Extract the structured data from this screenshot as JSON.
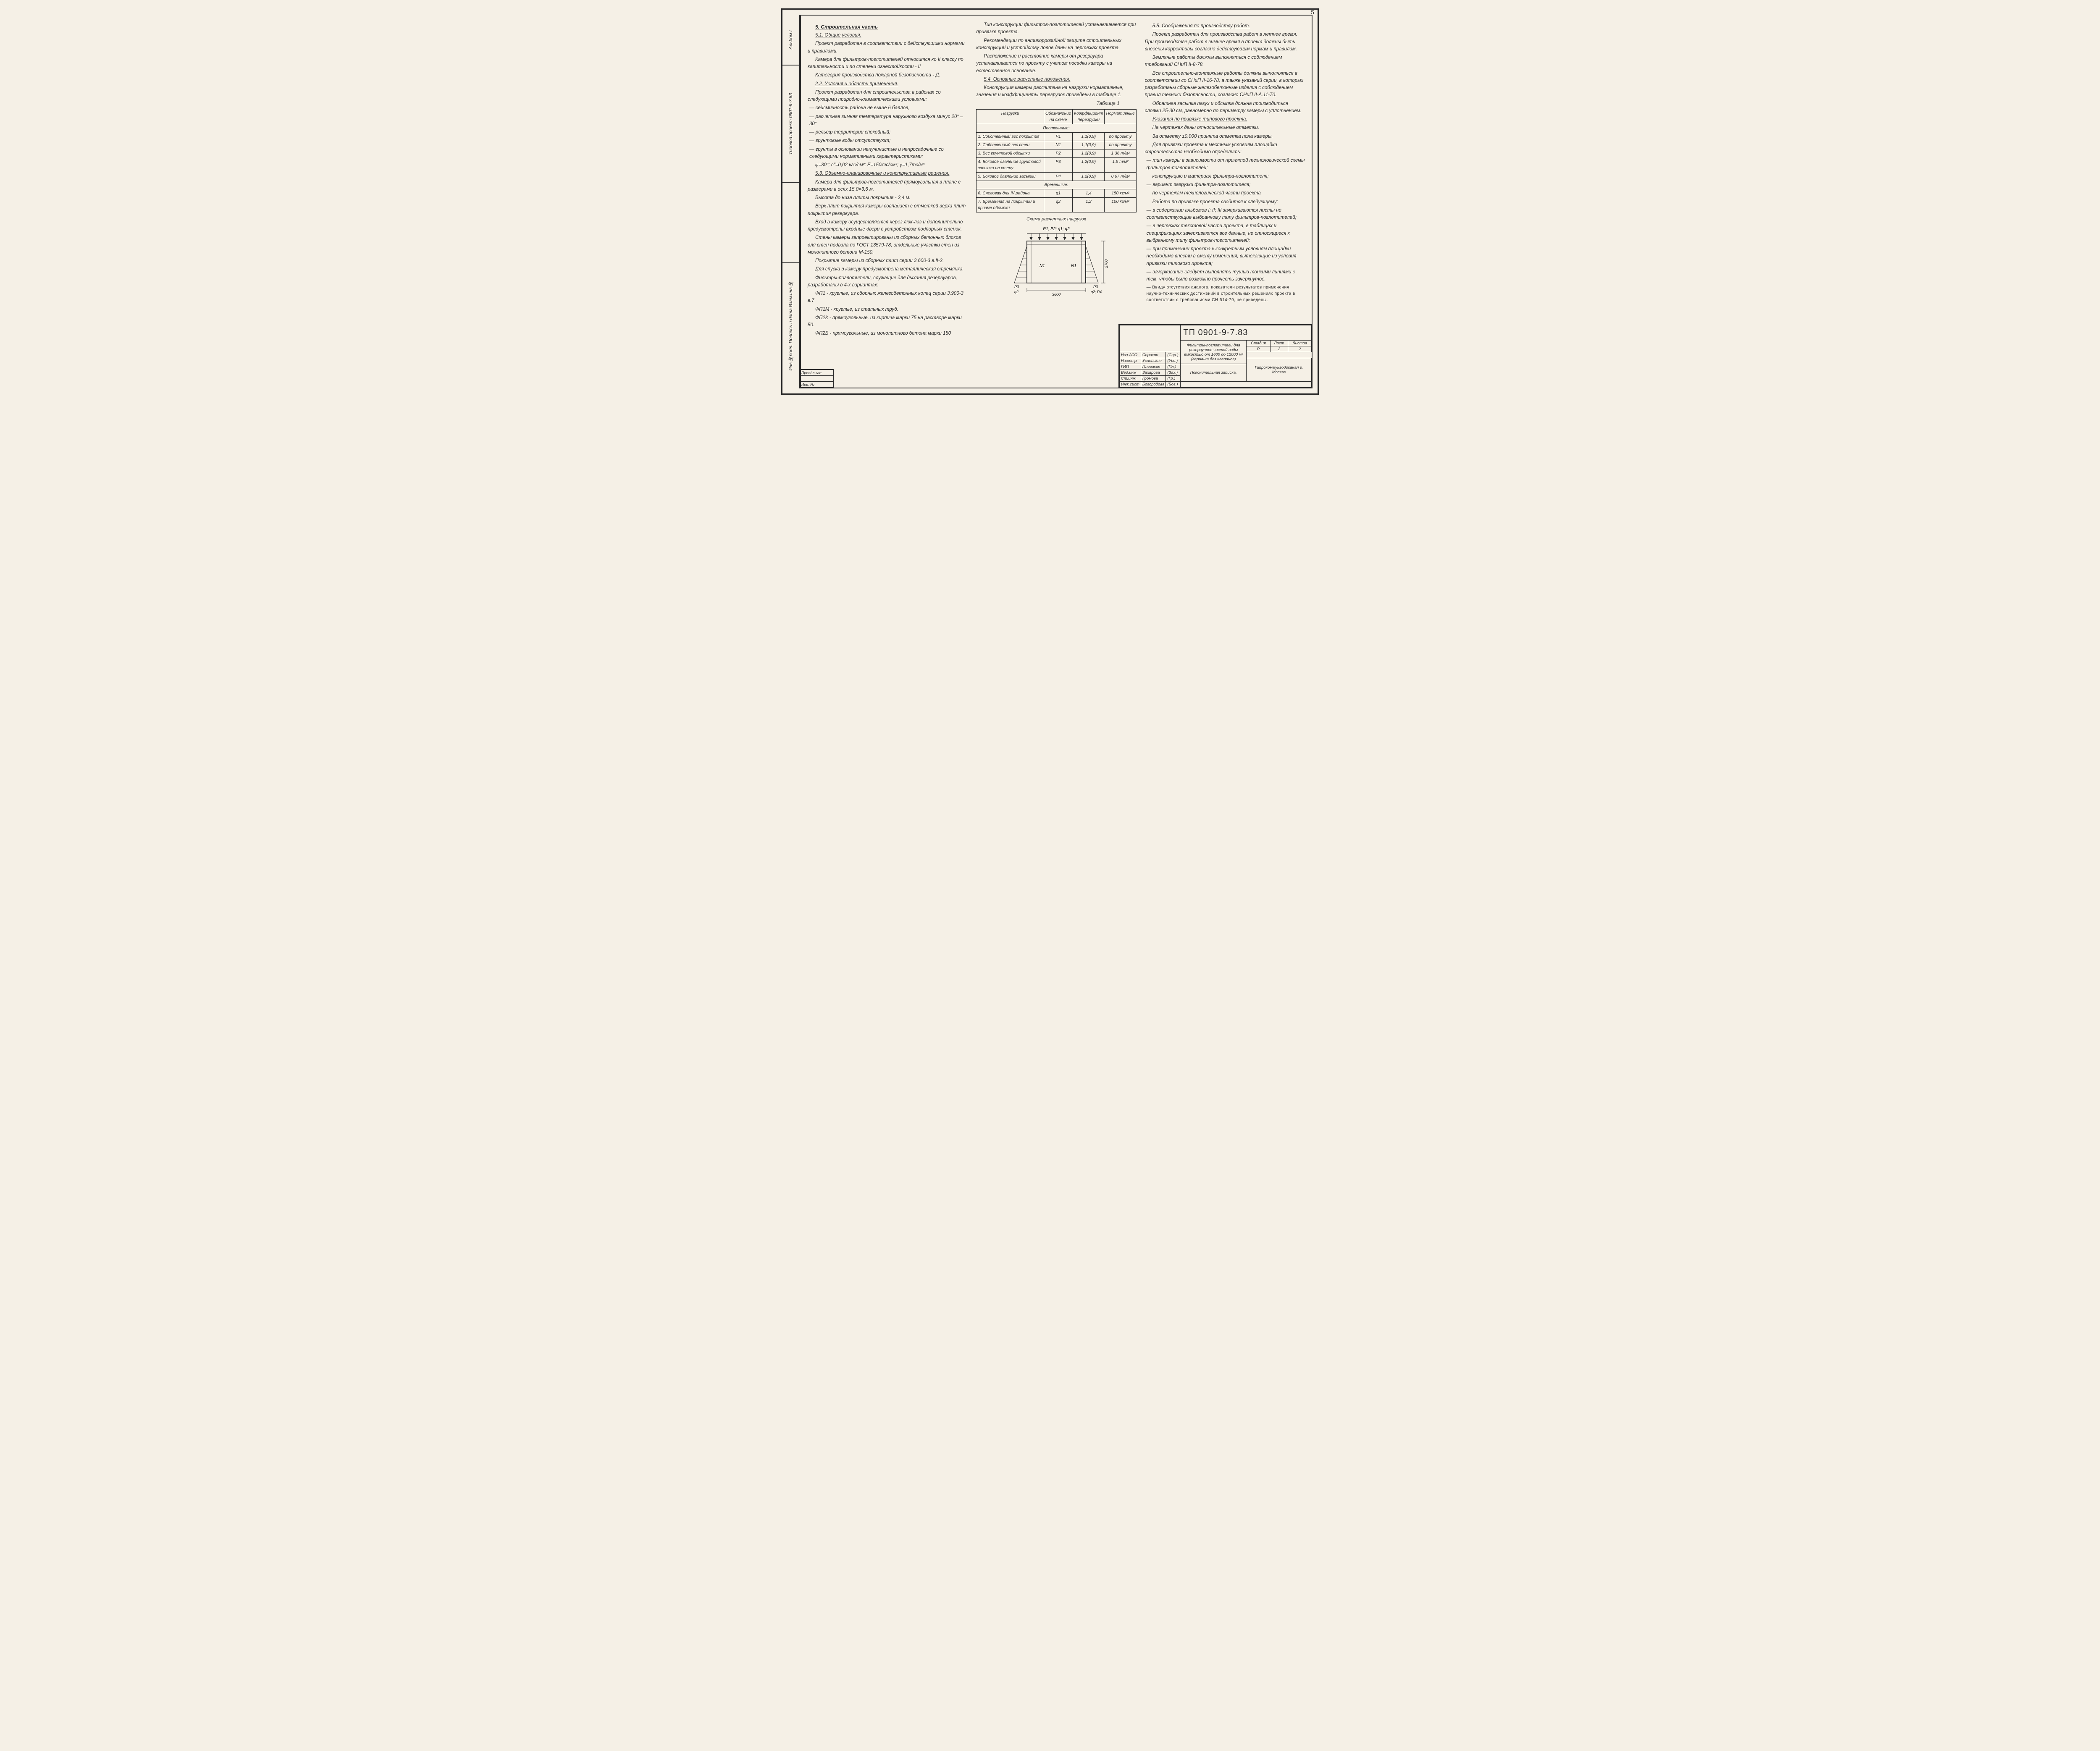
{
  "page_number": "5",
  "left_sidebar": {
    "top_text": "Альбом I",
    "mid_text": "Типовой проект 0901-9-7.83",
    "bottom_text": "Инв.№подл. Подпись и дата Взам.инв.№"
  },
  "col1": {
    "h_5": "5. Строительная часть",
    "h_51": "5.1. Общие условия.",
    "p1": "Проект разработан в соответствии с действующими нормами и правилами.",
    "p2": "Камера для фильтров-поглотителей относится ко II классу по капитальности и по степени огнестойкости - II",
    "p3": "Категория производства пожарной безопасности - Д.",
    "h_22": "2.2. Условия и область применения.",
    "p4": "Проект разработан для строительства в районах со следующими природно-климатическими условиями:",
    "li1": "— сейсмичность района не выше 6 баллов;",
    "li2": "— расчетная зимняя температура наружного воздуха минус 20° – 30°",
    "li3": "— рельеф территории спокойный;",
    "li4": "— грунтовые воды отсутствуют;",
    "li5": "— грунты в основании непучинистые и непросадочные со следующими нормативными характеристиками:",
    "formula": "φ=30°; c\"=0,02 кгс/см²; E=150кгс/см²; γ=1,7тс/м³",
    "h_53": "5.3. Объемно-планировочные и конструктивные решения.",
    "p5": "Камера для фильтров-поглотителей прямоугольная в плане с размерами в осях 15,0×3,6 м.",
    "p6": "Высота до низа плиты покрытия - 2,4 м.",
    "p7": "Верх плит покрытия камеры совпадает с отметкой верха плит покрытия резервуара.",
    "p8": "Вход в камеру осуществляется через люк-лаз и дополнительно предусмотрены входные двери с устройством подпорных стенок.",
    "p9": "Стены камеры запроектированы из сборных бетонных блоков для стен подвала по ГОСТ 13579-78, отдельные участки стен из монолитного бетона М-150.",
    "p10": "Покрытие камеры из сборных плит серии 3.600-3 в.II-2.",
    "p11": "Для спуска в камеру предусмотрена металлическая стремянка.",
    "p12": "Фильтры-поглотители, служащие для дыхания резервуаров, разработаны в 4-х вариантах:",
    "fp1": "ФП1 - круглые, из сборных железобетонных колец серии 3.900-3 в.7",
    "fp1m": "ФП1М - круглые, из стальных труб.",
    "fp2k": "ФП2К - прямоугольные, из кирпича марки 75 на растворе марки 50.",
    "fp2b": "ФП2Б - прямоугольные, из монолитного бетона марки 150"
  },
  "col2": {
    "p1": "Тип конструкции фильтров-поглотителей устанавливается при привязке проекта.",
    "p2": "Рекомендации по антикоррозийной защите строительных конструкций и устройству полов даны на чертежах проекта.",
    "p3": "Расположение и расстояние камеры от резервуара устанавливается по проекту с учетом посадки камеры на естественное основание.",
    "h_54": "5.4. Основные расчетные положения.",
    "p4": "Конструкция камеры рассчитана на нагрузки нормативные, значения и коэффициенты перегрузок приведены в таблице 1.",
    "tbl_label": "Таблица 1",
    "tbl_head": [
      "Нагрузки",
      "Обозначение на схеме",
      "Коэффициент перегрузки",
      "Нормативные"
    ],
    "tbl_sub1": "Постоянные:",
    "tbl_rows": [
      {
        "n": "1. Собственный вес покрытия",
        "s": "P1",
        "k": "1,1(0,9)",
        "v": "по проекту"
      },
      {
        "n": "2. Собственный вес стен",
        "s": "N1",
        "k": "1,1(0,9)",
        "v": "по проекту"
      },
      {
        "n": "3. Вес грунтовой обсыпки",
        "s": "P2",
        "k": "1,2(0,9)",
        "v": "1,36 т/м²"
      },
      {
        "n": "4. Боковое давление грунтовой засыпки на стену",
        "s": "P3",
        "k": "1,2(0,9)",
        "v": "1,5 т/м²"
      },
      {
        "n": "5. Боковое давление засыпки",
        "s": "P4",
        "k": "1,2(0,9)",
        "v": "0,67 т/м²"
      }
    ],
    "tbl_sub2": "Временные:",
    "tbl_rows2": [
      {
        "n": "6. Снеговая для IV района",
        "s": "q1",
        "k": "1,4",
        "v": "150 кг/м²"
      },
      {
        "n": "7. Временная на покрытии и призме обсыпки",
        "s": "q2",
        "k": "1,2",
        "v": "100 кг/м²"
      }
    ],
    "diag_title": "Схема расчетных нагрузок",
    "diag_top_label": "P1; P2; q1; q2",
    "diag_dim_w": "3600",
    "diag_dim_h": "2700",
    "diag_n1": "N1",
    "diag_p3": "P3",
    "diag_q2": "q2",
    "diag_q2p4": "q2; P4"
  },
  "col3": {
    "h_55": "5.5. Соображения по производству работ.",
    "p1": "Проект разработан для производства работ в летнее время. При производстве работ в зимнее время в проект должны быть внесены коррективы согласно действующим нормам и правилам.",
    "p2": "Земляные работы должны выполняться с соблюдением требований СНиП II-8-78.",
    "p3": "Все строительно-монтажные работы должны выполняться в соответствии со СНиП II-16-78, а также указаний серии, в которых разработаны сборные железобетонные изделия с соблюдением правил техники безопасности, согласно СНиП II-A.11-70.",
    "p4": "Обратная засыпка пазух и обсыпка должна производиться слоями 25-30 см, равномерно по периметру камеры с уплотнением.",
    "h_uk": "Указания по привязке типового проекта.",
    "p5": "На чертежах даны относительные отметки.",
    "p6": "За отметку ±0.000 принята отметка пола камеры.",
    "p7": "Для привязки проекта к местным условиям площадки строительства необходимо определить:",
    "li1": "— тип камеры в зависимости от принятой технологической схемы фильтров-поглотителей;",
    "li2": "конструкцию и материал фильтра-поглотителя;",
    "li3": "— вариант загрузки фильтра-поглотителя;",
    "li4": "по чертежам технологической части проекта",
    "p8": "Работа по привязке проекта сводится к следующему:",
    "li5": "— в содержании альбомов I; II; III зачеркиваются листы не соответствующие выбранному типу фильтров-поглотителей;",
    "li6": "— в чертежах текстовой части проекта, в таблицах и спецификациях зачеркиваются все данные, не относящиеся к выбранному типу фильтров-поглотителей;",
    "li7": "— при применении проекта к конкретным условиям площадки необходимо внести в смету изменения, вытекающие из условия привязки типового проекта;",
    "li8": "— зачеркивание следует выполнять тушью тонкими линиями с тем, чтобы было возможно прочесть зачеркнутое.",
    "li9": "— Ввиду отсутствия аналога, показатели результатов применения научно-технических достижений в строительных решениях проекта в соответствии с требованиями СН 514-79, не приведены."
  },
  "titleblock": {
    "code": "ТП 0901-9-7.83",
    "roles": [
      {
        "r": "Нач.АСО",
        "n": "Сорокин",
        "s": "(Сор.)"
      },
      {
        "r": "Н.контр",
        "n": "Успенская",
        "s": "(Усп.)"
      },
      {
        "r": "ГИП",
        "n": "Плевакин",
        "s": "(Пл.)"
      },
      {
        "r": "Вед.инж",
        "n": "Захарова",
        "s": "(Зах.)"
      },
      {
        "r": "Ст.инж.",
        "n": "Громова",
        "s": "(Гр.)"
      },
      {
        "r": "Инж.сист",
        "n": "Богородова",
        "s": "(Бог.)"
      }
    ],
    "desc1": "Фильтры-поглотители для резервуаров чистой воды емкостью от 1600 до 12000 м³ (вариант без клапанов)",
    "stage": "Стадия",
    "stage_v": "Р",
    "sheet": "Лист",
    "sheet_v": "2",
    "sheets": "Листов",
    "sheets_v": "2",
    "doc": "Пояснительная записка.",
    "org": "Гипрокоммунводоканал г. Москва",
    "leftcol": "Изм.Кол.Лист №док.Подп.Дата",
    "proverzap": "Провёл.зап",
    "inv": "Инв. №"
  }
}
